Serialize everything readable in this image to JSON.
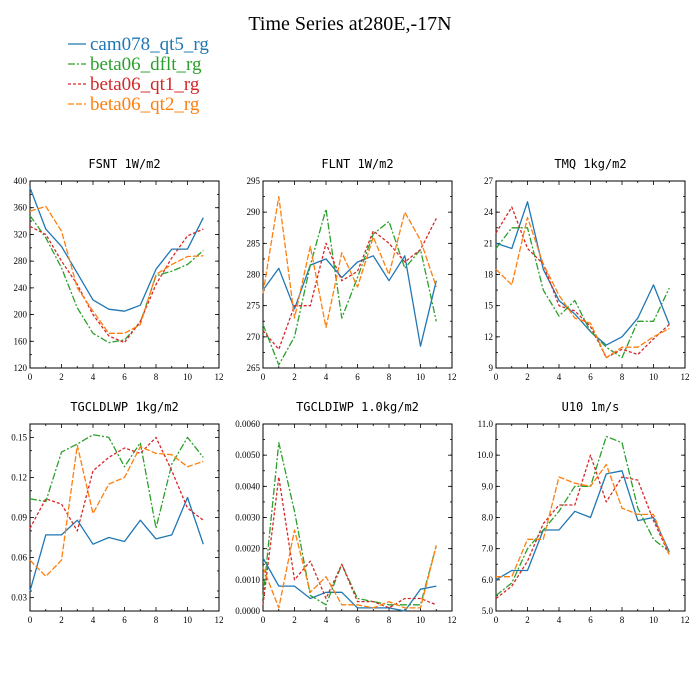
{
  "title": "Time Series at280E,-17N",
  "colors": {
    "blue": "#1f77b4",
    "green": "#2ca02c",
    "red": "#d62728",
    "orange": "#ff7f0e"
  },
  "legend": [
    {
      "label": "cam078_qt5_rg",
      "color": "#1f77b4"
    },
    {
      "label": "beta06_dflt_rg",
      "color": "#2ca02c"
    },
    {
      "label": "beta06_qt1_rg",
      "color": "#d62728"
    },
    {
      "label": "beta06_qt2_rg",
      "color": "#ff7f0e"
    }
  ],
  "chart_data": [
    {
      "type": "line",
      "title": "FSNT 1W/m2",
      "xlim": [
        0,
        12
      ],
      "ylim": [
        120,
        400
      ],
      "xticks": [
        0,
        2,
        4,
        6,
        8,
        10,
        12
      ],
      "yticks": [
        120,
        160,
        200,
        240,
        280,
        320,
        360,
        400
      ],
      "x": [
        0,
        1,
        2,
        3,
        4,
        5,
        6,
        7,
        8,
        9,
        10,
        11
      ],
      "series": [
        {
          "name": "cam078_qt5_rg",
          "values": [
            390,
            328,
            302,
            262,
            222,
            208,
            205,
            214,
            268,
            298,
            298,
            345
          ]
        },
        {
          "name": "beta06_dflt_rg",
          "values": [
            348,
            315,
            270,
            210,
            172,
            158,
            162,
            188,
            258,
            265,
            275,
            296
          ]
        },
        {
          "name": "beta06_qt1_rg",
          "values": [
            332,
            320,
            280,
            245,
            200,
            168,
            158,
            190,
            245,
            285,
            318,
            328
          ]
        },
        {
          "name": "beta06_qt2_rg",
          "values": [
            355,
            362,
            325,
            240,
            205,
            172,
            172,
            185,
            260,
            275,
            287,
            288
          ]
        }
      ]
    },
    {
      "type": "line",
      "title": "FLNT 1W/m2",
      "xlim": [
        0,
        12
      ],
      "ylim": [
        265,
        295
      ],
      "xticks": [
        0,
        2,
        4,
        6,
        8,
        10,
        12
      ],
      "yticks": [
        265,
        270,
        275,
        280,
        285,
        290,
        295
      ],
      "x": [
        0,
        1,
        2,
        3,
        4,
        5,
        6,
        7,
        8,
        9,
        10,
        11
      ],
      "series": [
        {
          "name": "cam078_qt5_rg",
          "values": [
            277.5,
            281,
            274.5,
            281.5,
            282.5,
            279.5,
            282,
            283,
            279,
            283,
            268.5,
            279
          ]
        },
        {
          "name": "beta06_dflt_rg",
          "values": [
            272,
            265.5,
            270,
            281.5,
            290.5,
            273,
            279.5,
            286.5,
            288.5,
            281,
            284,
            272.5
          ]
        },
        {
          "name": "beta06_qt1_rg",
          "values": [
            271,
            268,
            275,
            275,
            285,
            279,
            280.5,
            287,
            285,
            282,
            284,
            289
          ]
        },
        {
          "name": "beta06_qt2_rg",
          "values": [
            277,
            292.5,
            273,
            284.5,
            271.5,
            283.5,
            278,
            286,
            280,
            290,
            285.5,
            278
          ]
        }
      ]
    },
    {
      "type": "line",
      "title": "TMQ 1kg/m2",
      "xlim": [
        0,
        12
      ],
      "ylim": [
        9,
        27
      ],
      "xticks": [
        0,
        2,
        4,
        6,
        8,
        10,
        12
      ],
      "yticks": [
        9,
        12,
        15,
        18,
        21,
        24,
        27
      ],
      "x": [
        0,
        1,
        2,
        3,
        4,
        5,
        6,
        7,
        8,
        9,
        10,
        11
      ],
      "series": [
        {
          "name": "cam078_qt5_rg",
          "values": [
            21,
            20.5,
            25,
            18.5,
            15.5,
            14.2,
            12.5,
            11.2,
            12,
            13.8,
            17,
            13.2
          ]
        },
        {
          "name": "beta06_dflt_rg",
          "values": [
            20.5,
            22.5,
            22.5,
            16.5,
            14,
            15.5,
            12.5,
            11,
            10,
            13.5,
            13.5,
            16.7
          ]
        },
        {
          "name": "beta06_qt1_rg",
          "values": [
            22,
            24.5,
            20.5,
            19,
            15,
            14.5,
            13,
            10,
            10.8,
            10.3,
            11.8,
            13.2
          ]
        },
        {
          "name": "beta06_qt2_rg",
          "values": [
            18.5,
            17,
            23.5,
            19,
            16,
            13.8,
            13.3,
            10,
            11,
            11,
            12,
            12.8
          ]
        }
      ]
    },
    {
      "type": "line",
      "title": "TGCLDLWP 1kg/m2",
      "xlim": [
        0,
        12
      ],
      "ylim": [
        0.02,
        0.16
      ],
      "xticks": [
        0,
        2,
        4,
        6,
        8,
        10,
        12
      ],
      "yticks": [
        0.03,
        0.06,
        0.09,
        0.12,
        0.15
      ],
      "ytick_labels": [
        "0.03",
        "0.06",
        "0.09",
        "0.12",
        "0.15"
      ],
      "x": [
        0,
        1,
        2,
        3,
        4,
        5,
        6,
        7,
        8,
        9,
        10,
        11
      ],
      "series": [
        {
          "name": "cam078_qt5_rg",
          "values": [
            0.035,
            0.077,
            0.077,
            0.088,
            0.07,
            0.075,
            0.072,
            0.088,
            0.074,
            0.077,
            0.105,
            0.07
          ]
        },
        {
          "name": "beta06_dflt_rg",
          "values": [
            0.104,
            0.102,
            0.139,
            0.145,
            0.152,
            0.15,
            0.128,
            0.146,
            0.082,
            0.13,
            0.15,
            0.135
          ]
        },
        {
          "name": "beta06_qt1_rg",
          "values": [
            0.082,
            0.104,
            0.1,
            0.08,
            0.125,
            0.135,
            0.142,
            0.138,
            0.15,
            0.125,
            0.097,
            0.088
          ]
        },
        {
          "name": "beta06_qt2_rg",
          "values": [
            0.058,
            0.046,
            0.058,
            0.144,
            0.093,
            0.115,
            0.12,
            0.143,
            0.138,
            0.137,
            0.128,
            0.132
          ]
        }
      ]
    },
    {
      "type": "line",
      "title": "TGCLDIWP 1.0kg/m2",
      "xlim": [
        0,
        12
      ],
      "ylim": [
        0,
        0.006
      ],
      "xticks": [
        0,
        2,
        4,
        6,
        8,
        10,
        12
      ],
      "yticks": [
        0,
        0.001,
        0.002,
        0.003,
        0.004,
        0.005,
        0.006
      ],
      "ytick_labels": [
        "0.0000",
        "0.0010",
        "0.0020",
        "0.0030",
        "0.0040",
        "0.0050",
        "0.0060"
      ],
      "x": [
        0,
        1,
        2,
        3,
        4,
        5,
        6,
        7,
        8,
        9,
        10,
        11
      ],
      "series": [
        {
          "name": "cam078_qt5_rg",
          "values": [
            0.0017,
            0.0008,
            0.0008,
            0.0004,
            0.0006,
            0.0006,
            0.0001,
            0.0001,
            0.0001,
            0.0,
            0.0007,
            0.0008
          ]
        },
        {
          "name": "beta06_dflt_rg",
          "values": [
            0.0004,
            0.0054,
            0.0032,
            0.0005,
            0.0002,
            0.0015,
            0.0004,
            0.0003,
            0.0002,
            0.0002,
            0.0002,
            0.0021
          ]
        },
        {
          "name": "beta06_qt1_rg",
          "values": [
            0.0002,
            0.0043,
            0.001,
            0.0016,
            0.0004,
            0.0015,
            0.0003,
            0.0003,
            0.0001,
            0.0004,
            0.0004,
            0.0002
          ]
        },
        {
          "name": "beta06_qt2_rg",
          "values": [
            0.0014,
            0.0001,
            0.0026,
            0.0006,
            0.0011,
            0.0002,
            0.0002,
            0.0001,
            0.0003,
            0.0001,
            0.0001,
            0.0021
          ]
        }
      ]
    },
    {
      "type": "line",
      "title": "U10 1m/s",
      "xlim": [
        0,
        12
      ],
      "ylim": [
        5,
        11
      ],
      "xticks": [
        0,
        2,
        4,
        6,
        8,
        10,
        12
      ],
      "yticks": [
        5,
        6,
        7,
        8,
        9,
        10,
        11
      ],
      "ytick_labels": [
        "5.0",
        "6.0",
        "7.0",
        "8.0",
        "9.0",
        "10.0",
        "11.0"
      ],
      "x": [
        0,
        1,
        2,
        3,
        4,
        5,
        6,
        7,
        8,
        9,
        10,
        11
      ],
      "series": [
        {
          "name": "cam078_qt5_rg",
          "values": [
            6.0,
            6.3,
            6.3,
            7.6,
            7.6,
            8.2,
            8.0,
            9.4,
            9.5,
            7.9,
            8.0,
            6.9
          ]
        },
        {
          "name": "beta06_dflt_rg",
          "values": [
            5.5,
            5.9,
            7.0,
            7.6,
            8.2,
            9.0,
            9.0,
            10.6,
            10.4,
            8.3,
            7.3,
            6.9
          ]
        },
        {
          "name": "beta06_qt1_rg",
          "values": [
            5.4,
            5.8,
            6.6,
            7.8,
            8.4,
            8.4,
            10.0,
            8.5,
            9.3,
            9.2,
            7.9,
            6.8
          ]
        },
        {
          "name": "beta06_qt2_rg",
          "values": [
            6.1,
            6.1,
            7.3,
            7.3,
            9.3,
            9.1,
            9.0,
            9.7,
            8.3,
            8.1,
            8.1,
            6.8
          ]
        }
      ]
    }
  ]
}
